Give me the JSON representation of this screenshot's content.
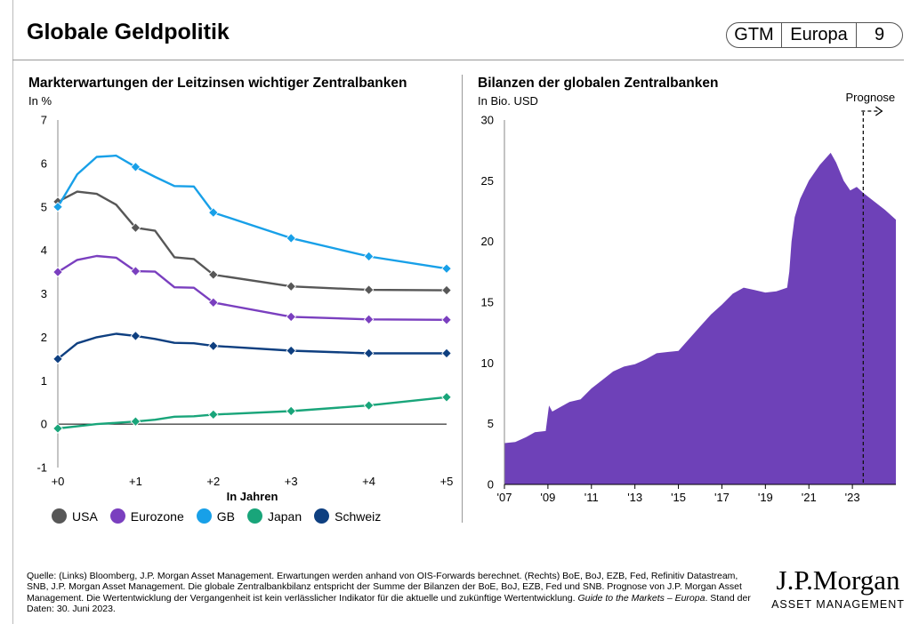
{
  "header": {
    "title": "Globale Geldpolitik",
    "badge": [
      "GTM",
      "Europa",
      "9"
    ]
  },
  "colors": {
    "usa": "#575757",
    "eurozone": "#7A3FBF",
    "gb": "#18A0E8",
    "japan": "#19A57A",
    "schweiz": "#0E3F80",
    "balance_fill": "#6E41B8"
  },
  "chart_data": [
    {
      "type": "line",
      "title": "Markterwartungen der Leitzinsen wichtiger Zentralbanken",
      "ylabel": "In %",
      "xlabel": "In Jahren",
      "ylim": [
        -1,
        7
      ],
      "yticks": [
        -1,
        0,
        1,
        2,
        3,
        4,
        5,
        6,
        7
      ],
      "xlim": [
        0,
        5
      ],
      "xticks": [
        0,
        1,
        2,
        3,
        4,
        5
      ],
      "xtick_labels": [
        "+0",
        "+1",
        "+2",
        "+3",
        "+4",
        "+5"
      ],
      "markers_at": [
        0,
        1,
        2,
        3,
        4,
        5
      ],
      "series": [
        {
          "name": "USA",
          "color_key": "usa",
          "x": [
            0,
            0.25,
            0.5,
            0.75,
            1,
            1.25,
            1.5,
            1.75,
            2,
            3,
            4,
            5
          ],
          "values": [
            5.12,
            5.35,
            5.3,
            5.05,
            4.52,
            4.45,
            3.84,
            3.8,
            3.44,
            3.17,
            3.09,
            3.08
          ]
        },
        {
          "name": "Eurozone",
          "color_key": "eurozone",
          "x": [
            0,
            0.25,
            0.5,
            0.75,
            1,
            1.25,
            1.5,
            1.75,
            2,
            3,
            4,
            5
          ],
          "values": [
            3.5,
            3.78,
            3.87,
            3.83,
            3.52,
            3.51,
            3.15,
            3.14,
            2.8,
            2.47,
            2.41,
            2.4
          ]
        },
        {
          "name": "GB",
          "color_key": "gb",
          "x": [
            0,
            0.25,
            0.5,
            0.75,
            1,
            1.25,
            1.5,
            1.75,
            2,
            3,
            4,
            5
          ],
          "values": [
            5.0,
            5.75,
            6.15,
            6.18,
            5.92,
            5.69,
            5.48,
            5.47,
            4.87,
            4.28,
            3.86,
            3.58
          ]
        },
        {
          "name": "Japan",
          "color_key": "japan",
          "x": [
            0,
            0.25,
            0.5,
            0.75,
            1,
            1.25,
            1.5,
            1.75,
            2,
            3,
            4,
            5
          ],
          "values": [
            -0.1,
            -0.05,
            0.0,
            0.03,
            0.06,
            0.1,
            0.17,
            0.18,
            0.22,
            0.3,
            0.43,
            0.62
          ]
        },
        {
          "name": "Schweiz",
          "color_key": "schweiz",
          "x": [
            0,
            0.25,
            0.5,
            0.75,
            1,
            1.25,
            1.5,
            1.75,
            2,
            3,
            4,
            5
          ],
          "values": [
            1.5,
            1.86,
            2.0,
            2.08,
            2.03,
            1.96,
            1.87,
            1.86,
            1.8,
            1.69,
            1.63,
            1.63
          ]
        }
      ],
      "legend": [
        "USA",
        "Eurozone",
        "GB",
        "Japan",
        "Schweiz"
      ]
    },
    {
      "type": "area",
      "title": "Bilanzen der globalen Zentralbanken",
      "ylabel": "In Bio. USD",
      "ylim": [
        0,
        30
      ],
      "yticks": [
        0,
        5,
        10,
        15,
        20,
        25,
        30
      ],
      "xlim": [
        2007,
        2025
      ],
      "xticks": [
        2007,
        2009,
        2011,
        2013,
        2015,
        2017,
        2019,
        2021,
        2023
      ],
      "xtick_labels": [
        "'07",
        "'09",
        "'11",
        "'13",
        "'15",
        "'17",
        "'19",
        "'21",
        "'23"
      ],
      "forecast_start": 2023.5,
      "forecast_label": "Prognose",
      "x": [
        2007,
        2007.5,
        2008,
        2008.4,
        2008.9,
        2009.05,
        2009.2,
        2009.5,
        2010,
        2010.5,
        2011,
        2011.5,
        2012,
        2012.5,
        2013,
        2013.5,
        2014,
        2014.5,
        2015,
        2015.5,
        2016,
        2016.5,
        2017,
        2017.5,
        2018,
        2018.5,
        2019,
        2019.5,
        2020,
        2020.1,
        2020.2,
        2020.35,
        2020.6,
        2021,
        2021.5,
        2022,
        2022.25,
        2022.6,
        2022.9,
        2023.2,
        2023.5,
        2024,
        2024.5,
        2025
      ],
      "values": [
        3.4,
        3.5,
        3.9,
        4.3,
        4.4,
        6.5,
        6.0,
        6.3,
        6.8,
        7.0,
        7.9,
        8.6,
        9.3,
        9.7,
        9.9,
        10.3,
        10.8,
        10.9,
        11.0,
        12.0,
        13.0,
        14.0,
        14.8,
        15.7,
        16.2,
        16.0,
        15.8,
        15.9,
        16.2,
        17.5,
        20.0,
        22.0,
        23.5,
        25.0,
        26.3,
        27.3,
        26.5,
        25.0,
        24.2,
        24.5,
        24.0,
        23.3,
        22.6,
        21.8
      ]
    }
  ],
  "footnote": {
    "text": "Quelle: (Links) Bloomberg, J.P. Morgan Asset Management. Erwartungen werden anhand von OIS-Forwards berechnet. (Rechts) BoE, BoJ, EZB, Fed, Refinitiv Datastream, SNB, J.P. Morgan Asset Management. Die globale Zentralbankbilanz entspricht der Summe der Bilanzen der BoE, BoJ, EZB, Fed und SNB. Prognose von J.P. Morgan Asset Management. Die Wertentwicklung der Vergangenheit ist kein verlässlicher Indikator für die aktuelle und zukünftige Wertentwicklung.",
    "guide": "Guide to the Markets – Europa",
    "date": ". Stand der Daten: 30. Juni 2023."
  },
  "logo": {
    "main": "J.P.Morgan",
    "sub": "ASSET MANAGEMENT"
  }
}
